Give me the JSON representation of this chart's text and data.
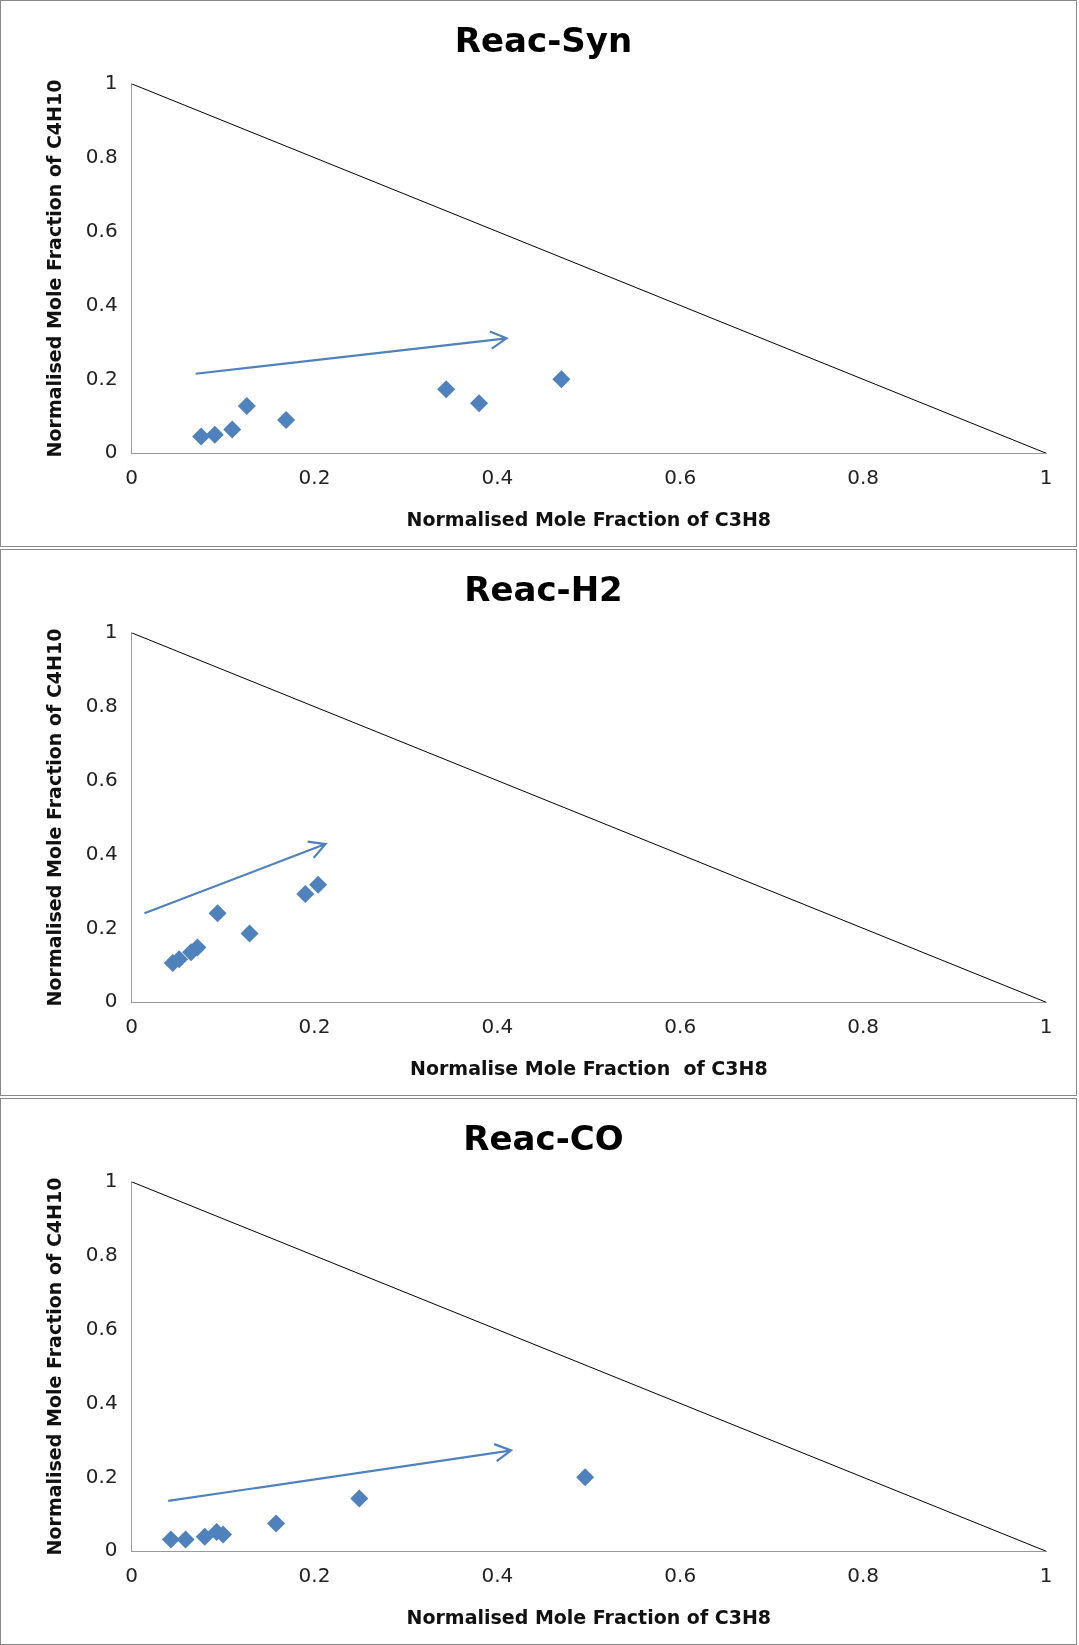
{
  "chart_data": [
    {
      "type": "scatter",
      "title": "Reac-Syn",
      "xlabel": "Normalised Mole Fraction of C3H8",
      "ylabel": "Normalised Mole Fraction of C4H10",
      "xlim": [
        0,
        1
      ],
      "ylim": [
        0,
        1
      ],
      "xticks": [
        0,
        0.2,
        0.4,
        0.6,
        0.8,
        1
      ],
      "yticks": [
        0,
        0.2,
        0.4,
        0.6,
        0.8,
        1
      ],
      "grid": false,
      "legend": false,
      "series": [
        {
          "marker": "diamond",
          "color": "#4f81bd",
          "x": [
            0.076,
            0.091,
            0.11,
            0.126,
            0.169,
            0.344,
            0.38,
            0.47
          ],
          "values": [
            0.045,
            0.05,
            0.064,
            0.128,
            0.09,
            0.173,
            0.135,
            0.2
          ]
        },
        {
          "type": "line",
          "marker": "none",
          "color": "#000000",
          "x": [
            0,
            1
          ],
          "values": [
            1,
            0
          ]
        }
      ]
    },
    {
      "type": "scatter",
      "title": "Reac-H2",
      "xlabel": "Normalise Mole Fraction  of C3H8",
      "ylabel": "Normalised Mole Fraction of C4H10",
      "xlim": [
        0,
        1
      ],
      "ylim": [
        0,
        1
      ],
      "xticks": [
        0,
        0.2,
        0.4,
        0.6,
        0.8,
        1
      ],
      "yticks": [
        0,
        0.2,
        0.4,
        0.6,
        0.8,
        1
      ],
      "grid": false,
      "legend": false,
      "series": [
        {
          "marker": "diamond",
          "color": "#4f81bd",
          "x": [
            0.045,
            0.052,
            0.065,
            0.072,
            0.094,
            0.129,
            0.19,
            0.204
          ],
          "values": [
            0.106,
            0.116,
            0.135,
            0.148,
            0.241,
            0.186,
            0.293,
            0.318
          ]
        },
        {
          "type": "line",
          "marker": "none",
          "color": "#000000",
          "x": [
            0,
            1
          ],
          "values": [
            1,
            0
          ]
        }
      ]
    },
    {
      "type": "scatter",
      "title": "Reac-CO",
      "xlabel": "Normalised Mole Fraction of C3H8",
      "ylabel": "Normalised Mole Fraction of C4H10",
      "xlim": [
        0,
        1
      ],
      "ylim": [
        0,
        1
      ],
      "xticks": [
        0,
        0.2,
        0.4,
        0.6,
        0.8,
        1
      ],
      "yticks": [
        0,
        0.2,
        0.4,
        0.6,
        0.8,
        1
      ],
      "grid": false,
      "legend": false,
      "series": [
        {
          "marker": "diamond",
          "color": "#4f81bd",
          "x": [
            0.043,
            0.059,
            0.08,
            0.093,
            0.1,
            0.158,
            0.249,
            0.496
          ],
          "values": [
            0.032,
            0.032,
            0.039,
            0.052,
            0.045,
            0.075,
            0.143,
            0.2
          ]
        },
        {
          "type": "line",
          "marker": "none",
          "color": "#000000",
          "x": [
            0,
            1
          ],
          "values": [
            1,
            0
          ]
        }
      ]
    }
  ]
}
